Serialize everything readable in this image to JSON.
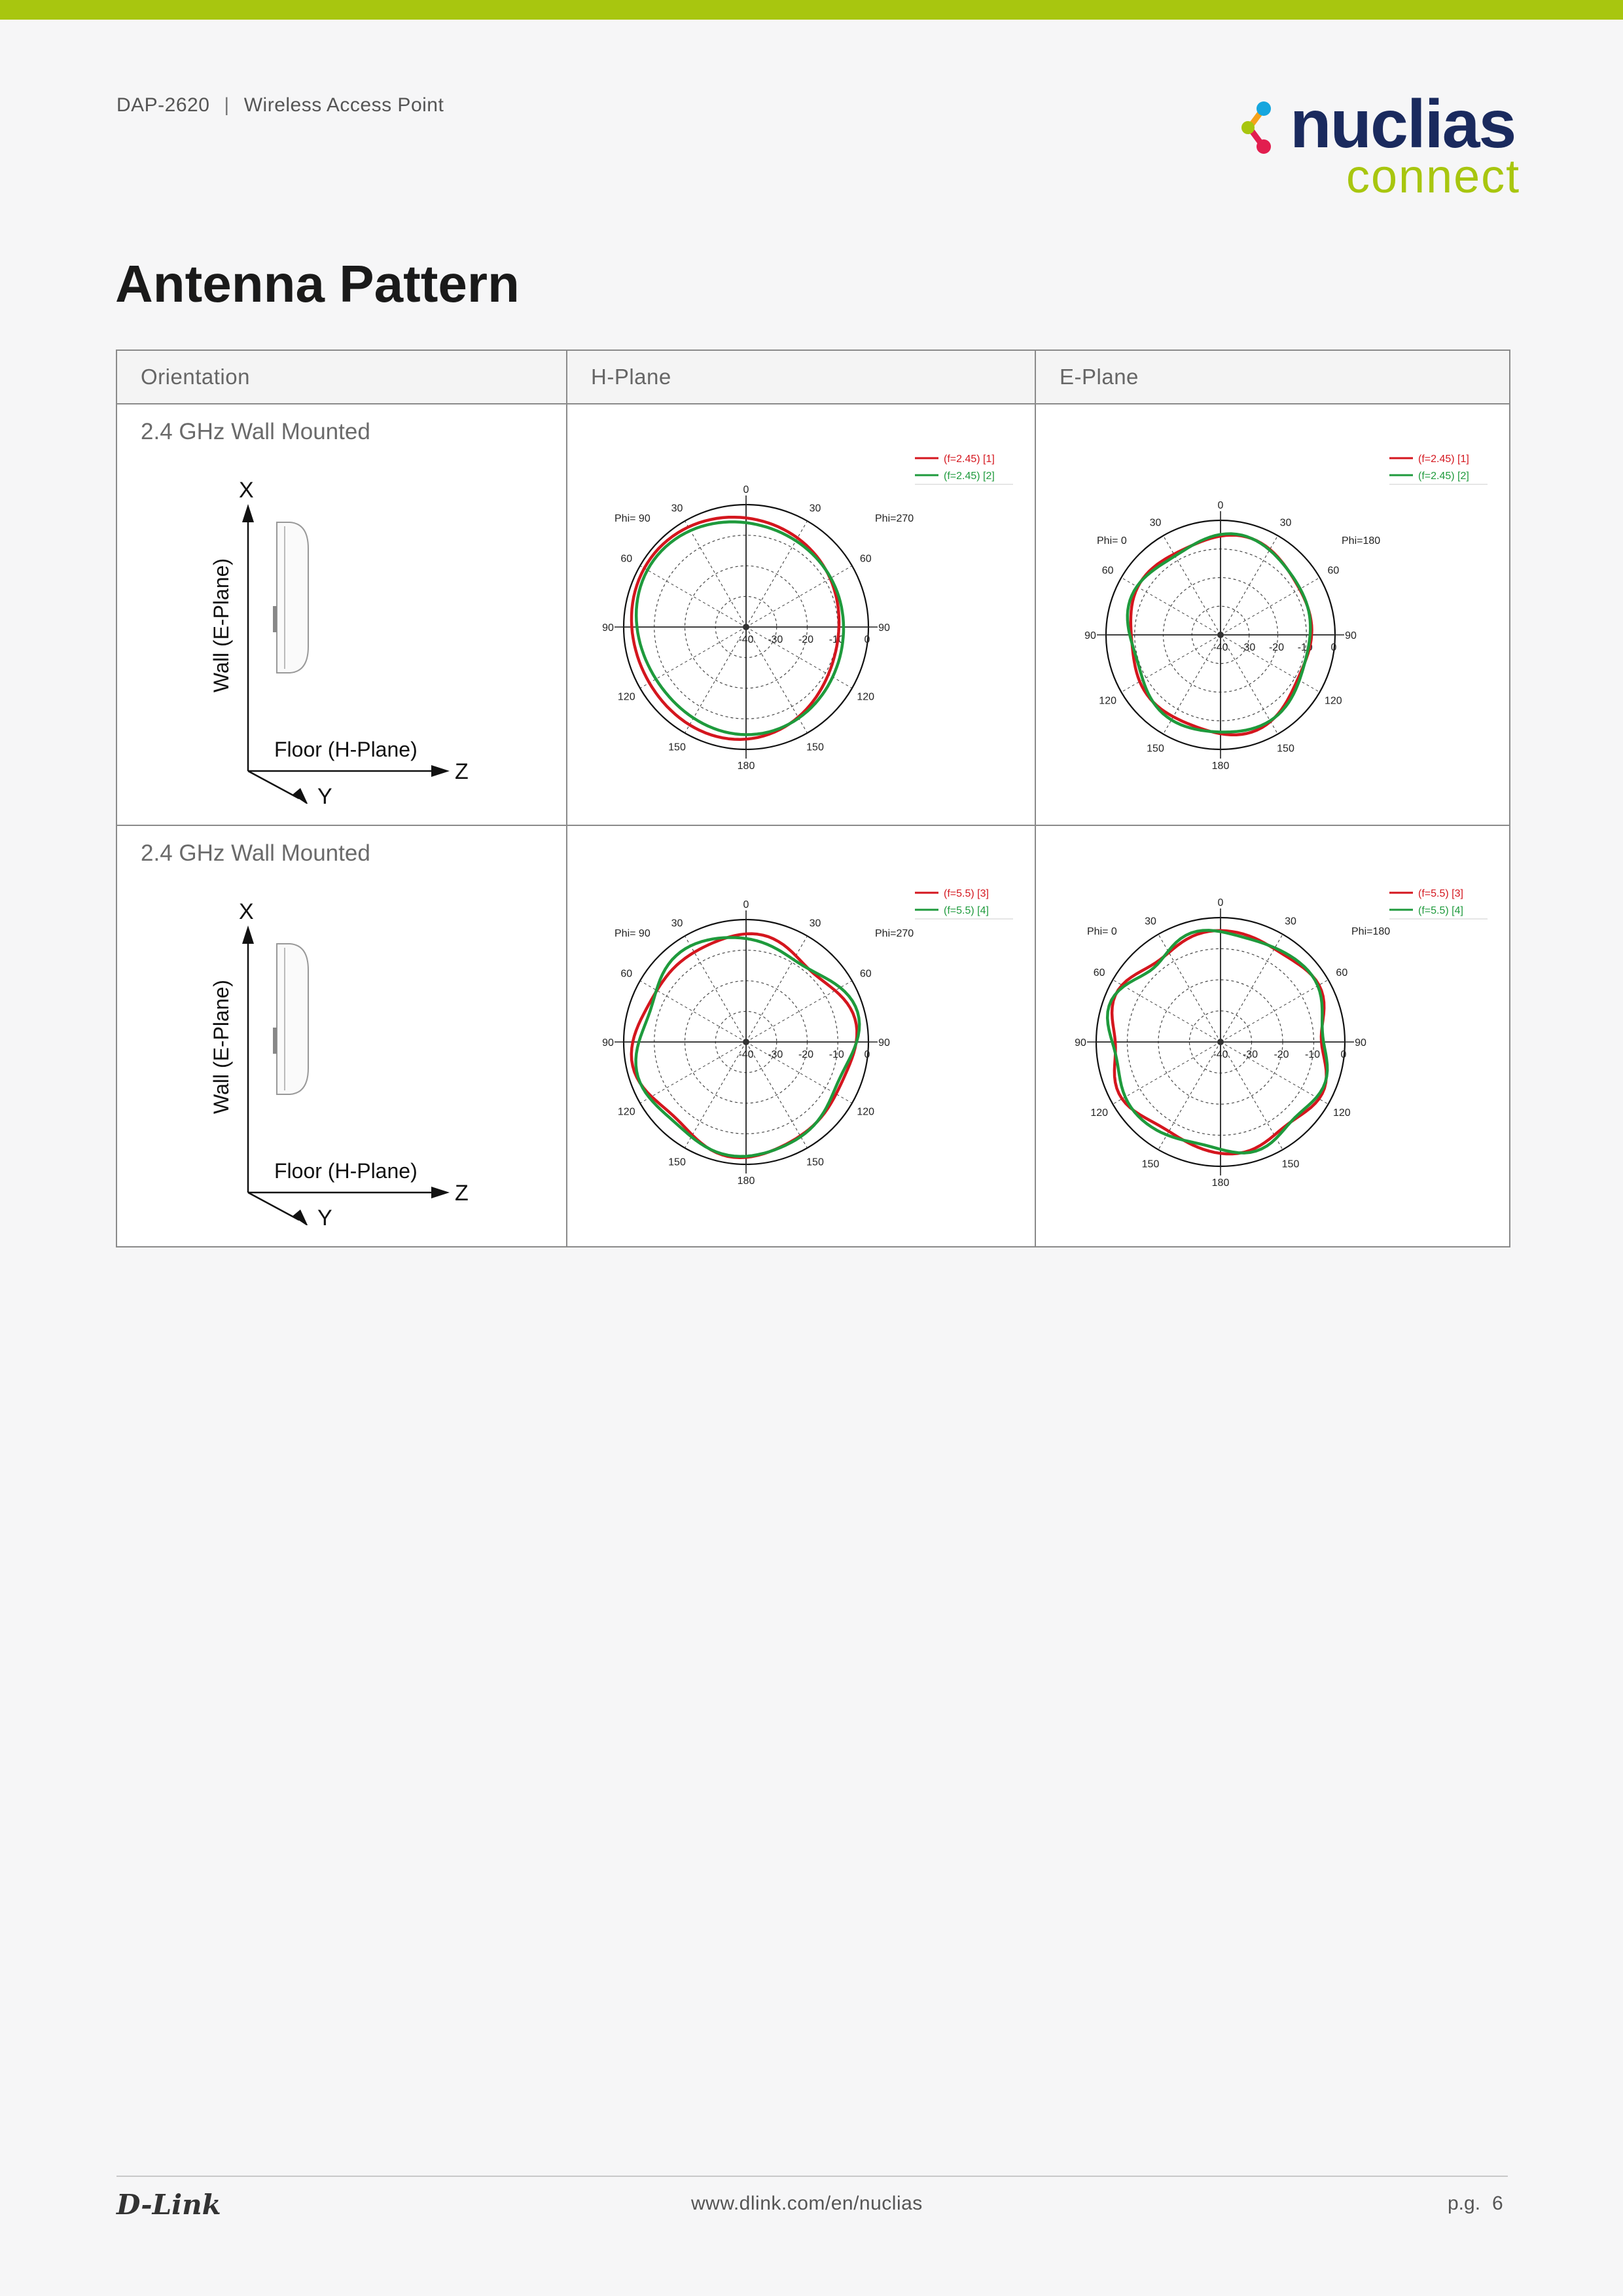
{
  "header": {
    "model": "DAP-2620",
    "separator": "|",
    "product": "Wireless Access Point"
  },
  "logo": {
    "word": "nuclias",
    "sub": "connect",
    "colors": {
      "word": "#1a2a5e",
      "sub": "#a8c60f",
      "dot1": "#a8c60f",
      "dot2": "#e21e4f",
      "dot3": "#f5a21b",
      "dot4": "#16a6de"
    }
  },
  "page_title": "Antenna Pattern",
  "table": {
    "headers": [
      "Orientation",
      "H-Plane",
      "E-Plane"
    ],
    "rows": [
      {
        "label": "2.4 GHz Wall Mounted",
        "orientation": {
          "axis_x": "X",
          "axis_y": "Y",
          "axis_z": "Z",
          "wall": "Wall  (E-Plane)",
          "floor": "Floor  (H-Plane)"
        },
        "h_plane": {
          "legend": [
            "(f=2.45) [1]",
            "(f=2.45) [2]"
          ],
          "phi_left": "Phi= 90",
          "phi_right": "Phi=270"
        },
        "e_plane": {
          "legend": [
            "(f=2.45) [1]",
            "(f=2.45) [2]"
          ],
          "phi_left": "Phi=  0",
          "phi_right": "Phi=180"
        }
      },
      {
        "label": "2.4 GHz Wall Mounted",
        "orientation": {
          "axis_x": "X",
          "axis_y": "Y",
          "axis_z": "Z",
          "wall": "Wall  (E-Plane)",
          "floor": "Floor  (H-Plane)"
        },
        "h_plane": {
          "legend": [
            "(f=5.5) [3]",
            "(f=5.5) [4]"
          ],
          "phi_left": "Phi= 90",
          "phi_right": "Phi=270"
        },
        "e_plane": {
          "legend": [
            "(f=5.5) [3]",
            "(f=5.5) [4]"
          ],
          "phi_left": "Phi=  0",
          "phi_right": "Phi=180"
        }
      }
    ]
  },
  "polar_ticks": {
    "angles": [
      "0",
      "30",
      "60",
      "90",
      "120",
      "150",
      "180",
      "150",
      "120",
      "90",
      "60",
      "30"
    ],
    "radial": [
      "-40",
      "-30",
      "-20",
      "-10",
      "0"
    ]
  },
  "series_colors": {
    "red": "#d4161e",
    "green": "#1e9a3c"
  },
  "footer": {
    "brand": "D-Link",
    "url": "www.dlink.com/en/nuclias",
    "page_label": "p.g.",
    "page_number": "6"
  }
}
